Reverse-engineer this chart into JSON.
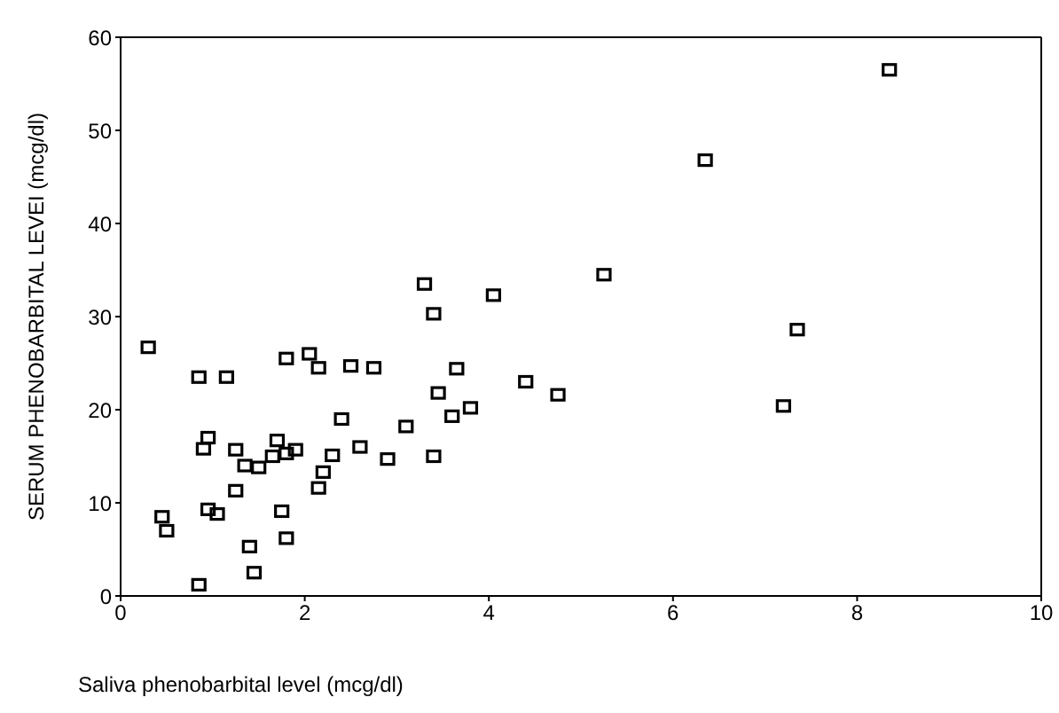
{
  "chart_data": {
    "type": "scatter",
    "xlabel": "Saliva phenobarbital level (mcg/dl)",
    "ylabel": "SERUM PHENOBARBITAL LEVEI (mcg/dl)",
    "x": [
      0.3,
      0.45,
      0.5,
      0.85,
      0.85,
      0.9,
      0.95,
      0.95,
      1.05,
      1.15,
      1.25,
      1.25,
      1.35,
      1.4,
      1.45,
      1.5,
      1.65,
      1.7,
      1.75,
      1.8,
      1.8,
      1.8,
      1.9,
      2.05,
      2.15,
      2.15,
      2.2,
      2.3,
      2.4,
      2.5,
      2.6,
      2.75,
      2.9,
      3.1,
      3.3,
      3.4,
      3.4,
      3.45,
      3.6,
      3.65,
      3.8,
      4.05,
      4.4,
      4.75,
      5.25,
      6.35,
      7.2,
      7.35,
      8.35
    ],
    "values": [
      26.7,
      8.5,
      7,
      1.2,
      23.5,
      15.8,
      17,
      9.3,
      8.8,
      23.5,
      15.7,
      11.3,
      14,
      5.3,
      2.5,
      13.8,
      15,
      16.7,
      9.1,
      25.5,
      6.2,
      15.3,
      15.7,
      26,
      24.5,
      11.6,
      13.3,
      15.1,
      19,
      24.7,
      16,
      24.5,
      14.7,
      18.2,
      33.5,
      30.3,
      15,
      21.8,
      19.3,
      24.4,
      20.2,
      32.3,
      23,
      21.6,
      34.5,
      46.8,
      20.4,
      28.6,
      56.5
    ],
    "color": "#000000",
    "marker": "square",
    "grid": false,
    "xlim": [
      0,
      10
    ],
    "xticks": [
      0,
      2,
      4,
      6,
      8,
      10
    ],
    "ylim": [
      0,
      60
    ],
    "yticks": [
      0,
      10,
      20,
      30,
      40,
      50,
      60
    ]
  }
}
